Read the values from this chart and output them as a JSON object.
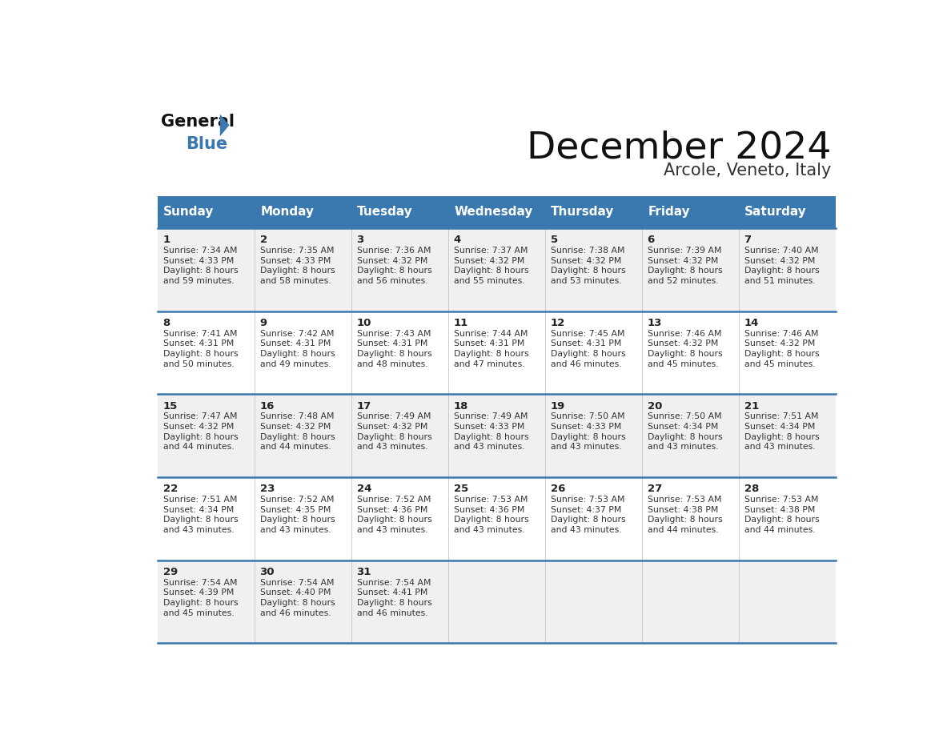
{
  "title": "December 2024",
  "subtitle": "Arcole, Veneto, Italy",
  "header_bg_color": "#3a78b0",
  "header_text_color": "#ffffff",
  "day_names": [
    "Sunday",
    "Monday",
    "Tuesday",
    "Wednesday",
    "Thursday",
    "Friday",
    "Saturday"
  ],
  "bg_color_odd": "#f0f0f0",
  "bg_color_even": "#ffffff",
  "cell_text_color": "#333333",
  "day_number_color": "#222222",
  "separator_color": "#3a78b0",
  "grid_color": "#bbbbbb",
  "calendar": [
    [
      {
        "day": 1,
        "sunrise": "7:34 AM",
        "sunset": "4:33 PM",
        "daylight_hrs": 8,
        "daylight_min": 59
      },
      {
        "day": 2,
        "sunrise": "7:35 AM",
        "sunset": "4:33 PM",
        "daylight_hrs": 8,
        "daylight_min": 58
      },
      {
        "day": 3,
        "sunrise": "7:36 AM",
        "sunset": "4:32 PM",
        "daylight_hrs": 8,
        "daylight_min": 56
      },
      {
        "day": 4,
        "sunrise": "7:37 AM",
        "sunset": "4:32 PM",
        "daylight_hrs": 8,
        "daylight_min": 55
      },
      {
        "day": 5,
        "sunrise": "7:38 AM",
        "sunset": "4:32 PM",
        "daylight_hrs": 8,
        "daylight_min": 53
      },
      {
        "day": 6,
        "sunrise": "7:39 AM",
        "sunset": "4:32 PM",
        "daylight_hrs": 8,
        "daylight_min": 52
      },
      {
        "day": 7,
        "sunrise": "7:40 AM",
        "sunset": "4:32 PM",
        "daylight_hrs": 8,
        "daylight_min": 51
      }
    ],
    [
      {
        "day": 8,
        "sunrise": "7:41 AM",
        "sunset": "4:31 PM",
        "daylight_hrs": 8,
        "daylight_min": 50
      },
      {
        "day": 9,
        "sunrise": "7:42 AM",
        "sunset": "4:31 PM",
        "daylight_hrs": 8,
        "daylight_min": 49
      },
      {
        "day": 10,
        "sunrise": "7:43 AM",
        "sunset": "4:31 PM",
        "daylight_hrs": 8,
        "daylight_min": 48
      },
      {
        "day": 11,
        "sunrise": "7:44 AM",
        "sunset": "4:31 PM",
        "daylight_hrs": 8,
        "daylight_min": 47
      },
      {
        "day": 12,
        "sunrise": "7:45 AM",
        "sunset": "4:31 PM",
        "daylight_hrs": 8,
        "daylight_min": 46
      },
      {
        "day": 13,
        "sunrise": "7:46 AM",
        "sunset": "4:32 PM",
        "daylight_hrs": 8,
        "daylight_min": 45
      },
      {
        "day": 14,
        "sunrise": "7:46 AM",
        "sunset": "4:32 PM",
        "daylight_hrs": 8,
        "daylight_min": 45
      }
    ],
    [
      {
        "day": 15,
        "sunrise": "7:47 AM",
        "sunset": "4:32 PM",
        "daylight_hrs": 8,
        "daylight_min": 44
      },
      {
        "day": 16,
        "sunrise": "7:48 AM",
        "sunset": "4:32 PM",
        "daylight_hrs": 8,
        "daylight_min": 44
      },
      {
        "day": 17,
        "sunrise": "7:49 AM",
        "sunset": "4:32 PM",
        "daylight_hrs": 8,
        "daylight_min": 43
      },
      {
        "day": 18,
        "sunrise": "7:49 AM",
        "sunset": "4:33 PM",
        "daylight_hrs": 8,
        "daylight_min": 43
      },
      {
        "day": 19,
        "sunrise": "7:50 AM",
        "sunset": "4:33 PM",
        "daylight_hrs": 8,
        "daylight_min": 43
      },
      {
        "day": 20,
        "sunrise": "7:50 AM",
        "sunset": "4:34 PM",
        "daylight_hrs": 8,
        "daylight_min": 43
      },
      {
        "day": 21,
        "sunrise": "7:51 AM",
        "sunset": "4:34 PM",
        "daylight_hrs": 8,
        "daylight_min": 43
      }
    ],
    [
      {
        "day": 22,
        "sunrise": "7:51 AM",
        "sunset": "4:34 PM",
        "daylight_hrs": 8,
        "daylight_min": 43
      },
      {
        "day": 23,
        "sunrise": "7:52 AM",
        "sunset": "4:35 PM",
        "daylight_hrs": 8,
        "daylight_min": 43
      },
      {
        "day": 24,
        "sunrise": "7:52 AM",
        "sunset": "4:36 PM",
        "daylight_hrs": 8,
        "daylight_min": 43
      },
      {
        "day": 25,
        "sunrise": "7:53 AM",
        "sunset": "4:36 PM",
        "daylight_hrs": 8,
        "daylight_min": 43
      },
      {
        "day": 26,
        "sunrise": "7:53 AM",
        "sunset": "4:37 PM",
        "daylight_hrs": 8,
        "daylight_min": 43
      },
      {
        "day": 27,
        "sunrise": "7:53 AM",
        "sunset": "4:38 PM",
        "daylight_hrs": 8,
        "daylight_min": 44
      },
      {
        "day": 28,
        "sunrise": "7:53 AM",
        "sunset": "4:38 PM",
        "daylight_hrs": 8,
        "daylight_min": 44
      }
    ],
    [
      {
        "day": 29,
        "sunrise": "7:54 AM",
        "sunset": "4:39 PM",
        "daylight_hrs": 8,
        "daylight_min": 45
      },
      {
        "day": 30,
        "sunrise": "7:54 AM",
        "sunset": "4:40 PM",
        "daylight_hrs": 8,
        "daylight_min": 46
      },
      {
        "day": 31,
        "sunrise": "7:54 AM",
        "sunset": "4:41 PM",
        "daylight_hrs": 8,
        "daylight_min": 46
      },
      null,
      null,
      null,
      null
    ]
  ]
}
